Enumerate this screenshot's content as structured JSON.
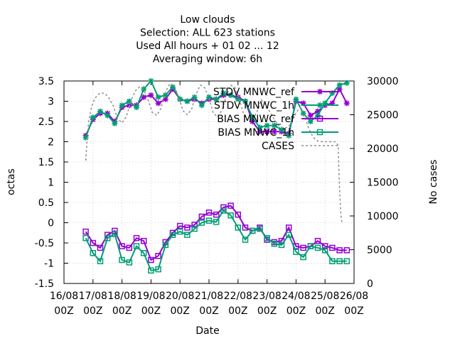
{
  "chart_data": {
    "type": "line",
    "title_lines": [
      "Low clouds",
      "Selection: ALL    623 stations",
      "Used  All hours + 01 02 ... 12",
      "Averaging window:  6h"
    ],
    "xlabel": "Date",
    "ylabel": "octas",
    "y2label": "No cases",
    "ylim": [
      -1.5,
      3.5
    ],
    "y2lim": [
      0,
      30000
    ],
    "xlim": [
      0,
      10
    ],
    "yticks": [
      "-1.5",
      "-1",
      "-0.5",
      "0",
      "0.5",
      "1",
      "1.5",
      "2",
      "2.5",
      "3",
      "3.5"
    ],
    "y2ticks": [
      "0",
      "5000",
      "10000",
      "15000",
      "20000",
      "25000",
      "30000"
    ],
    "xticks": [
      {
        "line1": "16/08",
        "line2": "00Z"
      },
      {
        "line1": "17/08",
        "line2": "00Z"
      },
      {
        "line1": "18/08",
        "line2": "00Z"
      },
      {
        "line1": "19/08",
        "line2": "00Z"
      },
      {
        "line1": "20/08",
        "line2": "00Z"
      },
      {
        "line1": "21/08",
        "line2": "00Z"
      },
      {
        "line1": "22/08",
        "line2": "00Z"
      },
      {
        "line1": "23/08",
        "line2": "00Z"
      },
      {
        "line1": "24/08",
        "line2": "00Z"
      },
      {
        "line1": "25/08",
        "line2": "00Z"
      },
      {
        "line1": "26/08",
        "line2": "00Z"
      }
    ],
    "grid": true,
    "legend_position": "top-right",
    "x": [
      0.75,
      1.0,
      1.25,
      1.5,
      1.75,
      2.0,
      2.25,
      2.5,
      2.75,
      3.0,
      3.25,
      3.5,
      3.75,
      4.0,
      4.25,
      4.5,
      4.75,
      5.0,
      5.25,
      5.5,
      5.75,
      6.0,
      6.25,
      6.5,
      6.75,
      7.0,
      7.25,
      7.5,
      7.75,
      8.0,
      8.25,
      8.5,
      8.75,
      9.0,
      9.25,
      9.5,
      9.75
    ],
    "series": [
      {
        "name": "STDV MNWC_ref",
        "axis": "y1",
        "color": "#9400d3",
        "marker": "star",
        "dash": "",
        "values": [
          2.15,
          2.55,
          2.7,
          2.7,
          2.5,
          2.85,
          2.9,
          2.9,
          3.1,
          3.15,
          2.95,
          3.05,
          3.3,
          3.05,
          3.0,
          3.05,
          2.95,
          3.05,
          3.05,
          3.15,
          3.15,
          3.1,
          3.0,
          2.5,
          2.25,
          2.25,
          2.25,
          2.25,
          2.2,
          3.0,
          2.95,
          2.65,
          2.75,
          2.9,
          2.95,
          3.3,
          2.95
        ]
      },
      {
        "name": "STDV MNWC_1h",
        "axis": "y1",
        "color": "#009e73",
        "marker": "star",
        "dash": "",
        "values": [
          2.1,
          2.6,
          2.75,
          2.65,
          2.45,
          2.9,
          3.0,
          2.85,
          3.3,
          3.5,
          3.1,
          3.15,
          3.35,
          3.05,
          3.0,
          3.1,
          2.9,
          3.1,
          3.05,
          3.2,
          3.15,
          3.05,
          3.0,
          2.6,
          2.35,
          2.4,
          2.4,
          2.3,
          2.15,
          3.05,
          2.7,
          2.5,
          2.65,
          2.95,
          3.2,
          3.4,
          3.45
        ]
      },
      {
        "name": "BIAS MNWC_ref",
        "axis": "y1",
        "color": "#9400d3",
        "marker": "square",
        "dash": "",
        "values": [
          -0.22,
          -0.5,
          -0.62,
          -0.3,
          -0.2,
          -0.58,
          -0.62,
          -0.38,
          -0.45,
          -0.92,
          -0.82,
          -0.48,
          -0.25,
          -0.08,
          -0.12,
          -0.05,
          0.15,
          0.25,
          0.2,
          0.38,
          0.42,
          0.2,
          -0.12,
          -0.2,
          -0.12,
          -0.42,
          -0.48,
          -0.45,
          -0.12,
          -0.58,
          -0.62,
          -0.58,
          -0.45,
          -0.58,
          -0.62,
          -0.68,
          -0.68
        ]
      },
      {
        "name": "BIAS MNWC_1h",
        "axis": "y1",
        "color": "#009e73",
        "marker": "square",
        "dash": "",
        "values": [
          -0.38,
          -0.75,
          -0.95,
          -0.38,
          -0.28,
          -0.92,
          -0.98,
          -0.58,
          -0.75,
          -1.18,
          -1.15,
          -0.55,
          -0.3,
          -0.22,
          -0.3,
          -0.15,
          0.0,
          0.05,
          0.02,
          0.3,
          0.18,
          -0.12,
          -0.42,
          -0.2,
          -0.15,
          -0.38,
          -0.52,
          -0.55,
          -0.3,
          -0.72,
          -0.85,
          -0.58,
          -0.62,
          -0.68,
          -0.95,
          -0.95,
          -0.95
        ]
      },
      {
        "name": "CASES",
        "axis": "y2",
        "color": "#909090",
        "marker": "none",
        "dash": "3,3",
        "x": [
          0.75,
          0.8,
          0.85,
          0.95,
          1.05,
          1.15,
          1.25,
          1.4,
          1.55,
          1.7,
          1.85,
          2.0,
          2.15,
          2.3,
          2.45,
          2.6,
          2.75,
          2.9,
          3.05,
          3.2,
          3.35,
          3.5,
          3.65,
          3.8,
          3.95,
          4.1,
          4.25,
          4.4,
          4.55,
          4.7,
          4.85,
          5.0,
          5.15,
          5.3,
          5.45,
          5.6,
          5.75,
          5.9,
          6.05,
          6.2,
          6.35,
          6.5,
          6.65,
          6.8,
          6.95,
          7.1,
          7.25,
          7.4,
          7.55,
          7.7,
          7.85,
          8.0,
          8.15,
          8.3,
          8.45,
          8.6,
          8.75,
          8.9,
          9.05,
          9.2,
          9.35,
          9.45,
          9.5,
          9.55,
          9.58,
          9.6
        ],
        "values": [
          18200,
          21500,
          24000,
          26200,
          27300,
          27900,
          28200,
          28200,
          27500,
          26300,
          24400,
          23800,
          24700,
          26900,
          28500,
          29100,
          28700,
          27200,
          25300,
          24900,
          26000,
          28400,
          29600,
          29300,
          27700,
          25600,
          25000,
          25800,
          28000,
          29400,
          29000,
          27500,
          25200,
          24700,
          25700,
          27900,
          29400,
          29000,
          27200,
          25000,
          24000,
          24200,
          25400,
          27200,
          26500,
          25400,
          24300,
          23400,
          23000,
          23100,
          23800,
          25300,
          26100,
          24700,
          22800,
          21600,
          21100,
          21000,
          21000,
          21000,
          21000,
          20500,
          14000,
          10000,
          9000,
          9000
        ]
      }
    ]
  }
}
